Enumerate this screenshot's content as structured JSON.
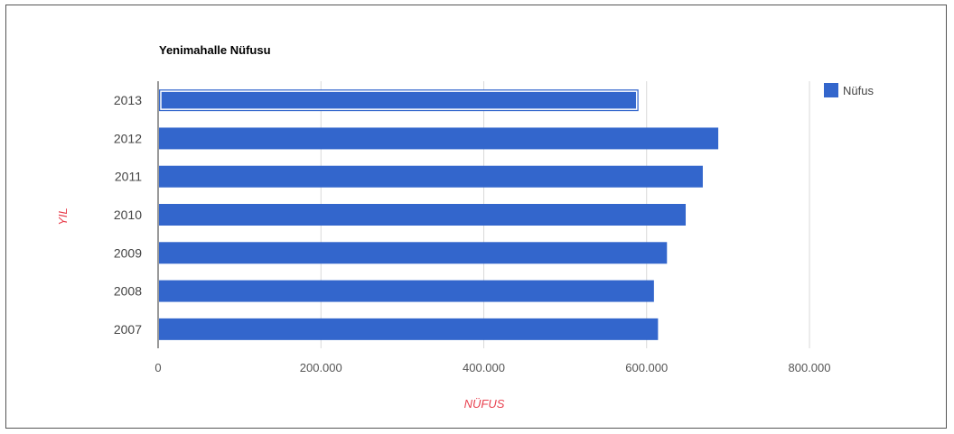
{
  "chart_data": {
    "type": "bar",
    "orientation": "horizontal",
    "title": "Yenimahalle Nüfusu",
    "xlabel": "NÜFUS",
    "ylabel": "YIL",
    "categories": [
      "2013",
      "2012",
      "2011",
      "2010",
      "2009",
      "2008",
      "2007"
    ],
    "series": [
      {
        "name": "Nüfus",
        "values": [
          590000,
          688000,
          669000,
          648000,
          625000,
          609000,
          614000
        ],
        "color": "#3366cc"
      }
    ],
    "highlighted_category": "2013",
    "xlim": [
      0,
      800000
    ],
    "xticks": [
      0,
      200000,
      400000,
      600000,
      800000
    ],
    "xtick_labels": [
      "0",
      "200.000",
      "400.000",
      "600.000",
      "800.000"
    ],
    "grid": true,
    "legend": "top-right",
    "axis_title_color": "#e8414f"
  }
}
